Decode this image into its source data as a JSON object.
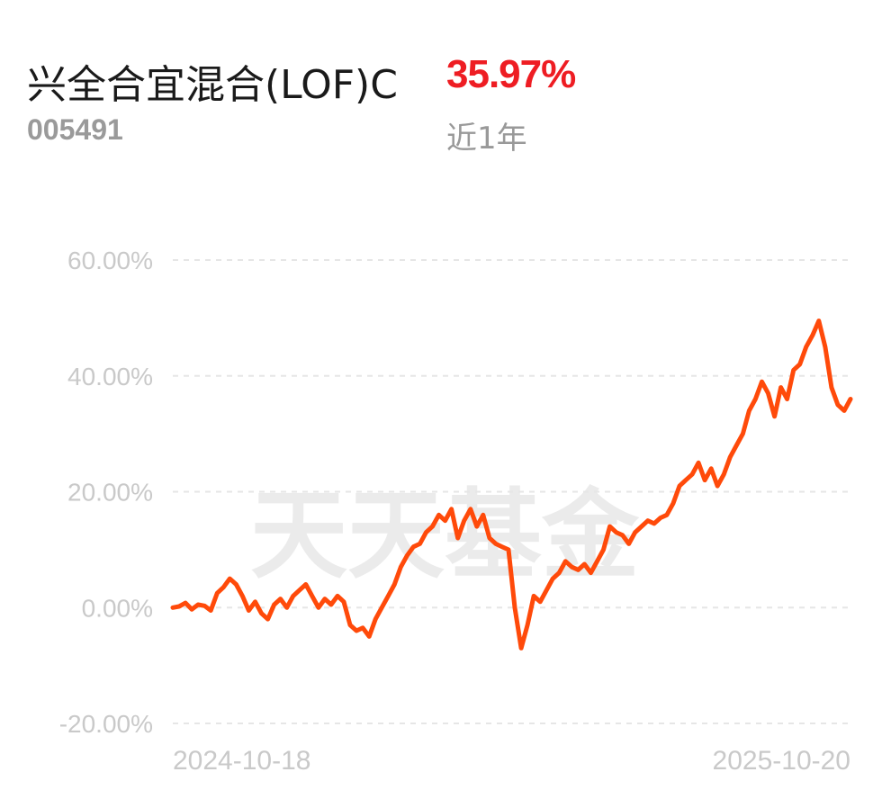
{
  "header": {
    "fund_name": "兴全合宜混合(LOF)C",
    "fund_code": "005491",
    "return_value": "35.97%",
    "period_label": "近1年"
  },
  "colors": {
    "line": "#ff4a0a",
    "return": "#ee1d23",
    "grid": "#e6e6e6",
    "tick": "#c9c9c9"
  },
  "watermark": "天天基金",
  "chart_data": {
    "type": "line",
    "title": "",
    "xlabel": "",
    "ylabel": "",
    "ylim": [
      -20,
      60
    ],
    "yticks": [
      60,
      40,
      20,
      0,
      -20
    ],
    "ytick_labels": [
      "60.00%",
      "40.00%",
      "20.00%",
      "0.00%",
      "-20.00%"
    ],
    "x_start_label": "2024-10-18",
    "x_end_label": "2025-10-20",
    "grid": true,
    "legend": "none",
    "series": [
      {
        "values": [
          0.0,
          0.2,
          0.8,
          -0.3,
          0.5,
          0.3,
          -0.5,
          2.5,
          3.5,
          5.0,
          4.0,
          2.0,
          -0.5,
          1.0,
          -1.0,
          -2.0,
          0.5,
          1.5,
          0.0,
          2.0,
          3.0,
          4.0,
          2.0,
          0.0,
          1.5,
          0.5,
          2.0,
          1.0,
          -3.0,
          -4.0,
          -3.5,
          -5.0,
          -2.0,
          0.0,
          2.0,
          4.0,
          7.0,
          9.0,
          10.5,
          11.0,
          13.0,
          14.0,
          16.0,
          15.0,
          17.0,
          12.0,
          15.0,
          17.0,
          14.0,
          16.0,
          12.0,
          11.0,
          10.5,
          10.0,
          0.0,
          -7.0,
          -3.0,
          2.0,
          1.0,
          3.0,
          5.0,
          6.0,
          8.0,
          7.0,
          6.5,
          7.5,
          6.0,
          8.0,
          10.0,
          14.0,
          13.0,
          12.5,
          11.0,
          13.0,
          14.0,
          15.0,
          14.5,
          15.5,
          16.0,
          18.0,
          21.0,
          22.0,
          23.0,
          25.0,
          22.0,
          24.0,
          21.0,
          23.0,
          26.0,
          28.0,
          30.0,
          34.0,
          36.0,
          39.0,
          37.0,
          33.0,
          38.0,
          36.0,
          41.0,
          42.0,
          45.0,
          47.0,
          49.5,
          45.0,
          38.0,
          35.0,
          34.0,
          36.0
        ]
      }
    ]
  }
}
